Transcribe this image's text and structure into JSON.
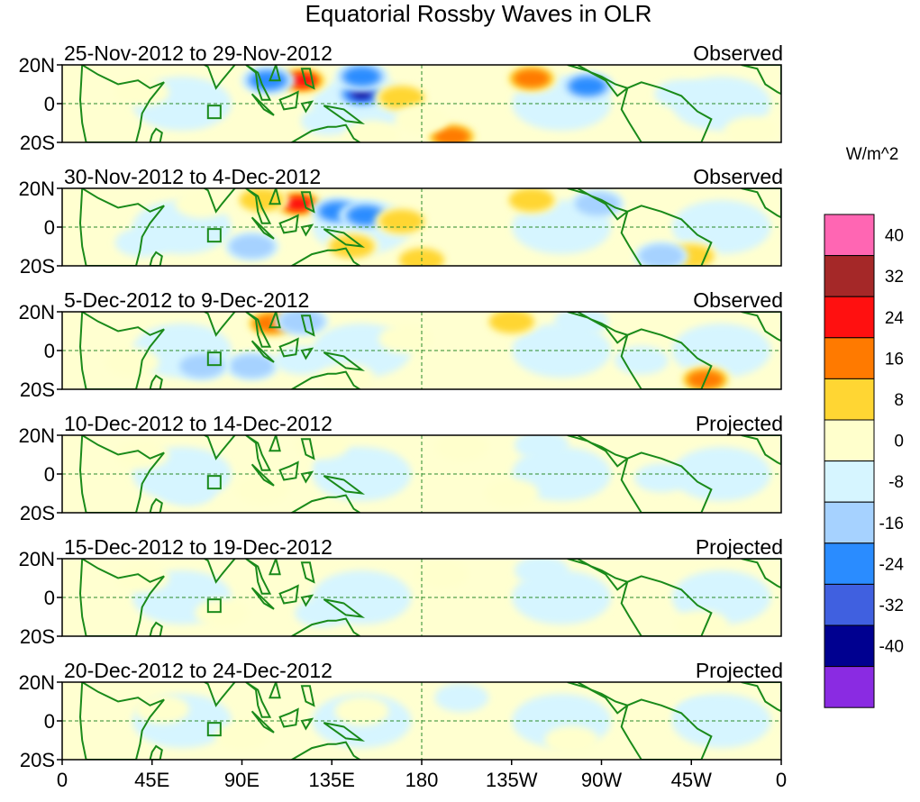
{
  "chart_data": {
    "type": "heatmap",
    "title": "Equatorial Rossby Waves in OLR",
    "xlabel": "",
    "ylabel": "",
    "x_ticks": [
      "0",
      "45E",
      "90E",
      "135E",
      "180",
      "135W",
      "90W",
      "45W",
      "0"
    ],
    "y_ticks": [
      "20N",
      "0",
      "20S"
    ],
    "xlim": [
      0,
      360
    ],
    "ylim": [
      -20,
      20
    ],
    "colorbar": {
      "title": "W/m^2",
      "levels": [
        "40",
        "32",
        "24",
        "16",
        "8",
        "0",
        "-8",
        "-16",
        "-24",
        "-32",
        "-40"
      ],
      "colors": [
        "#ff66b3",
        "#a52828",
        "#ff1010",
        "#ff7a00",
        "#ffd633",
        "#ffffcc",
        "#d6f5ff",
        "#a6d2ff",
        "#2a8cff",
        "#4060e0",
        "#000090",
        "#8a2be2"
      ]
    },
    "panels": [
      {
        "date_range": "25-Nov-2012 to 29-Nov-2012",
        "status": "Observed",
        "features": [
          {
            "lon": 120,
            "lat": 12,
            "value": 36
          },
          {
            "lon": 103,
            "lat": 12,
            "value": -24
          },
          {
            "lon": 150,
            "lat": 5,
            "value": -40
          },
          {
            "lon": 150,
            "lat": 14,
            "value": -24
          },
          {
            "lon": 170,
            "lat": 3,
            "value": 16
          },
          {
            "lon": 195,
            "lat": -17,
            "value": 24
          },
          {
            "lon": 235,
            "lat": 13,
            "value": 24
          },
          {
            "lon": 263,
            "lat": 9,
            "value": -24
          },
          {
            "lon": 133,
            "lat": -9,
            "value": -8
          },
          {
            "lon": 180,
            "lat": -8,
            "value": 8
          },
          {
            "lon": 40,
            "lat": 6,
            "value": 8
          },
          {
            "lon": 155,
            "lat": -16,
            "value": 8
          },
          {
            "lon": 310,
            "lat": 5,
            "value": -8
          },
          {
            "lon": 345,
            "lat": -14,
            "value": 8
          }
        ]
      },
      {
        "date_range": "30-Nov-2012 to 4-Dec-2012",
        "status": "Observed",
        "features": [
          {
            "lon": 118,
            "lat": 12,
            "value": 32
          },
          {
            "lon": 100,
            "lat": 14,
            "value": 16
          },
          {
            "lon": 138,
            "lat": 8,
            "value": -24
          },
          {
            "lon": 152,
            "lat": 6,
            "value": -24
          },
          {
            "lon": 170,
            "lat": 3,
            "value": 16
          },
          {
            "lon": 235,
            "lat": 14,
            "value": 16
          },
          {
            "lon": 268,
            "lat": 12,
            "value": -16
          },
          {
            "lon": 315,
            "lat": -15,
            "value": 16
          },
          {
            "lon": 300,
            "lat": -15,
            "value": -16
          },
          {
            "lon": 95,
            "lat": -10,
            "value": -16
          },
          {
            "lon": 145,
            "lat": -10,
            "value": 16
          },
          {
            "lon": 180,
            "lat": -17,
            "value": 16
          },
          {
            "lon": 70,
            "lat": 12,
            "value": 8
          },
          {
            "lon": 40,
            "lat": -8,
            "value": -8
          }
        ]
      },
      {
        "date_range": "5-Dec-2012 to 9-Dec-2012",
        "status": "Observed",
        "features": [
          {
            "lon": 105,
            "lat": 14,
            "value": 24
          },
          {
            "lon": 120,
            "lat": 15,
            "value": -16
          },
          {
            "lon": 95,
            "lat": -8,
            "value": -16
          },
          {
            "lon": 70,
            "lat": -8,
            "value": -16
          },
          {
            "lon": 120,
            "lat": -5,
            "value": -8
          },
          {
            "lon": 225,
            "lat": 15,
            "value": 16
          },
          {
            "lon": 260,
            "lat": 15,
            "value": -8
          },
          {
            "lon": 172,
            "lat": 6,
            "value": 8
          },
          {
            "lon": 322,
            "lat": -15,
            "value": 24
          },
          {
            "lon": 35,
            "lat": -6,
            "value": 8
          },
          {
            "lon": 143,
            "lat": -14,
            "value": 8
          },
          {
            "lon": 290,
            "lat": -5,
            "value": -8
          }
        ]
      },
      {
        "date_range": "10-Dec-2012 to 14-Dec-2012",
        "status": "Projected",
        "features": [
          {
            "lon": 100,
            "lat": -8,
            "value": 8
          },
          {
            "lon": 63,
            "lat": -9,
            "value": -8
          },
          {
            "lon": 140,
            "lat": 5,
            "value": -8
          },
          {
            "lon": 130,
            "lat": 15,
            "value": 8
          },
          {
            "lon": 200,
            "lat": 14,
            "value": 8
          },
          {
            "lon": 240,
            "lat": 15,
            "value": -8
          },
          {
            "lon": 40,
            "lat": 10,
            "value": 8
          },
          {
            "lon": 225,
            "lat": -10,
            "value": 8
          },
          {
            "lon": 300,
            "lat": -2,
            "value": -8
          }
        ]
      },
      {
        "date_range": "15-Dec-2012 to 19-Dec-2012",
        "status": "Projected",
        "features": [
          {
            "lon": 80,
            "lat": -8,
            "value": 8
          },
          {
            "lon": 130,
            "lat": -8,
            "value": -8
          },
          {
            "lon": 190,
            "lat": 12,
            "value": 8
          },
          {
            "lon": 240,
            "lat": 14,
            "value": -8
          },
          {
            "lon": 320,
            "lat": -14,
            "value": 8
          },
          {
            "lon": 40,
            "lat": 10,
            "value": 8
          }
        ]
      },
      {
        "date_range": "20-Dec-2012 to 24-Dec-2012",
        "status": "Projected",
        "features": [
          {
            "lon": 90,
            "lat": -8,
            "value": 8
          },
          {
            "lon": 150,
            "lat": 5,
            "value": 8
          },
          {
            "lon": 200,
            "lat": 12,
            "value": -8
          },
          {
            "lon": 255,
            "lat": -10,
            "value": 8
          },
          {
            "lon": 50,
            "lat": 6,
            "value": 8
          },
          {
            "lon": 320,
            "lat": 4,
            "value": -8
          }
        ]
      }
    ]
  }
}
